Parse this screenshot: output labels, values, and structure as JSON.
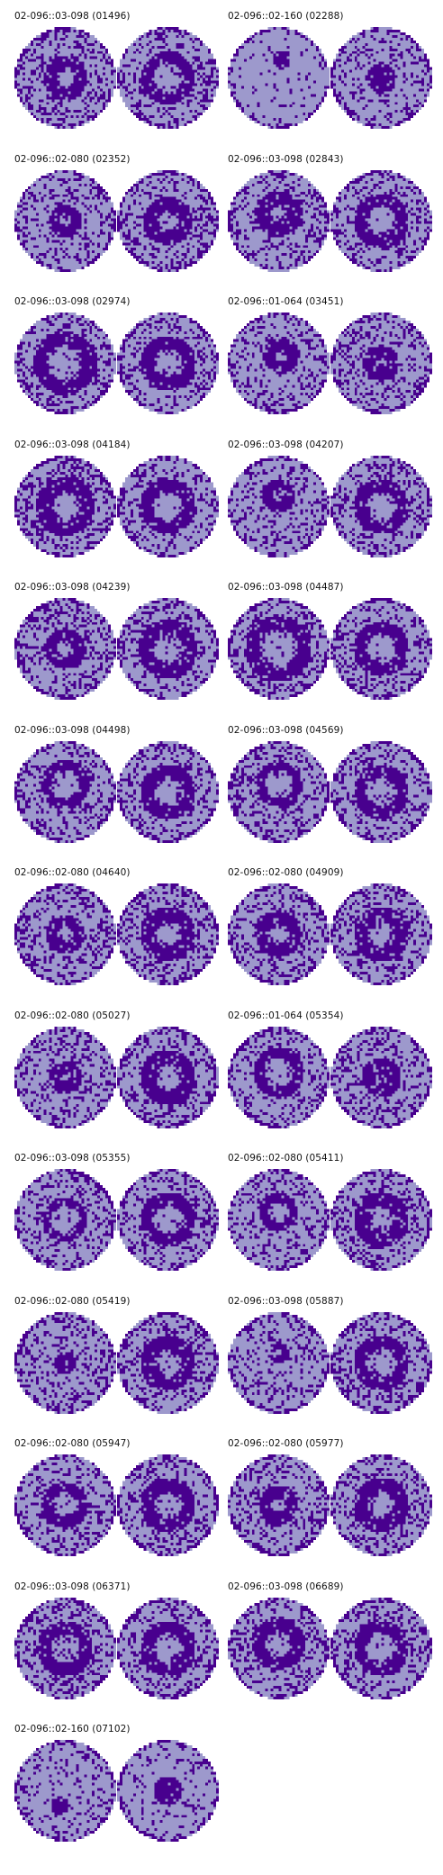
{
  "colors": {
    "fail": "#48008e",
    "pass": "#9d99cc",
    "background": "#ffffff"
  },
  "wafer_pairs": [
    {
      "label": "02-096::03-098 (01496)",
      "left": {
        "pattern": "ring",
        "inner": 0.18,
        "outer": 0.42,
        "noise": 0.33
      },
      "right": {
        "pattern": "ring",
        "inner": 0.3,
        "outer": 0.52,
        "noise": 0.28
      }
    },
    {
      "label": "02-096::02-160 (02288)",
      "left": {
        "pattern": "spot",
        "inner": 0.0,
        "outer": 0.18,
        "noise": 0.1,
        "dx": 0.05,
        "dy": -0.35
      },
      "right": {
        "pattern": "spot",
        "inner": 0.0,
        "outer": 0.3,
        "noise": 0.22
      }
    },
    {
      "label": "02-096::02-080 (02352)",
      "left": {
        "pattern": "ring",
        "inner": 0.12,
        "outer": 0.32,
        "noise": 0.25
      },
      "right": {
        "pattern": "ring",
        "inner": 0.2,
        "outer": 0.48,
        "noise": 0.3
      }
    },
    {
      "label": "02-096::03-098 (02843)",
      "left": {
        "pattern": "ring",
        "inner": 0.15,
        "outer": 0.45,
        "noise": 0.3,
        "dx": 0.0,
        "dy": -0.15
      },
      "right": {
        "pattern": "ring",
        "inner": 0.3,
        "outer": 0.55,
        "noise": 0.28
      }
    },
    {
      "label": "02-096::03-098 (02974)",
      "left": {
        "pattern": "ring",
        "inner": 0.35,
        "outer": 0.62,
        "noise": 0.3
      },
      "right": {
        "pattern": "ring",
        "inner": 0.28,
        "outer": 0.55,
        "noise": 0.28
      }
    },
    {
      "label": "02-096::01-064 (03451)",
      "left": {
        "pattern": "ring",
        "inner": 0.12,
        "outer": 0.35,
        "noise": 0.25,
        "dx": 0.05,
        "dy": -0.15
      },
      "right": {
        "pattern": "ring",
        "inner": 0.1,
        "outer": 0.35,
        "noise": 0.28
      }
    },
    {
      "label": "02-096::03-098 (04184)",
      "left": {
        "pattern": "ring",
        "inner": 0.3,
        "outer": 0.58,
        "noise": 0.32
      },
      "right": {
        "pattern": "ring",
        "inner": 0.3,
        "outer": 0.55,
        "noise": 0.28
      }
    },
    {
      "label": "02-096::03-098 (04207)",
      "left": {
        "pattern": "ring",
        "inner": 0.12,
        "outer": 0.32,
        "noise": 0.25,
        "dx": 0.0,
        "dy": -0.2
      },
      "right": {
        "pattern": "ring",
        "inner": 0.3,
        "outer": 0.55,
        "noise": 0.28
      }
    },
    {
      "label": "02-096::03-098 (04239)",
      "left": {
        "pattern": "ring",
        "inner": 0.18,
        "outer": 0.4,
        "noise": 0.32
      },
      "right": {
        "pattern": "ring",
        "inner": 0.3,
        "outer": 0.58,
        "noise": 0.28
      }
    },
    {
      "label": "02-096::03-098 (04487)",
      "left": {
        "pattern": "ring",
        "inner": 0.38,
        "outer": 0.65,
        "noise": 0.3
      },
      "right": {
        "pattern": "ring",
        "inner": 0.3,
        "outer": 0.55,
        "noise": 0.28
      }
    },
    {
      "label": "02-096::03-098 (04498)",
      "left": {
        "pattern": "ring",
        "inner": 0.28,
        "outer": 0.48,
        "noise": 0.28,
        "dx": 0.0,
        "dy": -0.15
      },
      "right": {
        "pattern": "ring",
        "inner": 0.3,
        "outer": 0.55,
        "noise": 0.28
      }
    },
    {
      "label": "02-096::03-098 (04569)",
      "left": {
        "pattern": "ring",
        "inner": 0.28,
        "outer": 0.45,
        "noise": 0.3,
        "dx": 0.0,
        "dy": -0.15
      },
      "right": {
        "pattern": "ring",
        "inner": 0.3,
        "outer": 0.55,
        "noise": 0.28
      }
    },
    {
      "label": "02-096::02-080 (04640)",
      "left": {
        "pattern": "ring",
        "inner": 0.15,
        "outer": 0.38,
        "noise": 0.28
      },
      "right": {
        "pattern": "ring",
        "inner": 0.25,
        "outer": 0.55,
        "noise": 0.3
      }
    },
    {
      "label": "02-096::02-080 (04909)",
      "left": {
        "pattern": "ring",
        "inner": 0.2,
        "outer": 0.45,
        "noise": 0.28
      },
      "right": {
        "pattern": "ring",
        "inner": 0.25,
        "outer": 0.55,
        "noise": 0.3
      }
    },
    {
      "label": "02-096::02-080 (05027)",
      "left": {
        "pattern": "ring",
        "inner": 0.12,
        "outer": 0.32,
        "noise": 0.28
      },
      "right": {
        "pattern": "ring",
        "inner": 0.25,
        "outer": 0.55,
        "noise": 0.3
      }
    },
    {
      "label": "02-096::01-064 (05354)",
      "left": {
        "pattern": "ring",
        "inner": 0.28,
        "outer": 0.5,
        "noise": 0.22,
        "dx": 0.0,
        "dy": -0.1
      },
      "right": {
        "pattern": "ring",
        "inner": 0.12,
        "outer": 0.38,
        "noise": 0.28
      }
    },
    {
      "label": "02-096::03-098 (05355)",
      "left": {
        "pattern": "ring",
        "inner": 0.3,
        "outer": 0.42,
        "noise": 0.3
      },
      "right": {
        "pattern": "ring",
        "inner": 0.3,
        "outer": 0.55,
        "noise": 0.28
      }
    },
    {
      "label": "02-096::02-080 (05411)",
      "left": {
        "pattern": "ring",
        "inner": 0.2,
        "outer": 0.38,
        "noise": 0.28,
        "dx": 0.0,
        "dy": -0.15
      },
      "right": {
        "pattern": "ring",
        "inner": 0.25,
        "outer": 0.55,
        "noise": 0.3
      }
    },
    {
      "label": "02-096::02-080 (05419)",
      "left": {
        "pattern": "ring",
        "inner": 0.08,
        "outer": 0.22,
        "noise": 0.28
      },
      "right": {
        "pattern": "ring",
        "inner": 0.25,
        "outer": 0.55,
        "noise": 0.3
      }
    },
    {
      "label": "02-096::03-098 (05887)",
      "left": {
        "pattern": "ring",
        "inner": 0.08,
        "outer": 0.2,
        "noise": 0.26,
        "dx": 0.0,
        "dy": -0.2
      },
      "right": {
        "pattern": "ring",
        "inner": 0.3,
        "outer": 0.55,
        "noise": 0.28
      }
    },
    {
      "label": "02-096::02-080 (05947)",
      "left": {
        "pattern": "ring",
        "inner": 0.25,
        "outer": 0.45,
        "noise": 0.28
      },
      "right": {
        "pattern": "ring",
        "inner": 0.25,
        "outer": 0.55,
        "noise": 0.3
      }
    },
    {
      "label": "02-096::02-080 (05977)",
      "left": {
        "pattern": "ring",
        "inner": 0.15,
        "outer": 0.38,
        "noise": 0.28
      },
      "right": {
        "pattern": "ring",
        "inner": 0.25,
        "outer": 0.55,
        "noise": 0.3
      }
    },
    {
      "label": "02-096::03-098 (06371)",
      "left": {
        "pattern": "ring",
        "inner": 0.28,
        "outer": 0.55,
        "noise": 0.32
      },
      "right": {
        "pattern": "ring",
        "inner": 0.3,
        "outer": 0.55,
        "noise": 0.28
      }
    },
    {
      "label": "02-096::03-098 (06689)",
      "left": {
        "pattern": "ring",
        "inner": 0.25,
        "outer": 0.52,
        "noise": 0.3,
        "dx": 0.0,
        "dy": -0.1
      },
      "right": {
        "pattern": "ring",
        "inner": 0.3,
        "outer": 0.55,
        "noise": 0.28
      }
    },
    {
      "label": "02-096::02-160 (07102)",
      "left": {
        "pattern": "spot",
        "inner": 0.0,
        "outer": 0.18,
        "noise": 0.18,
        "dx": -0.1,
        "dy": 0.3
      },
      "right": {
        "pattern": "spot",
        "inner": 0.0,
        "outer": 0.28,
        "noise": 0.15
      }
    }
  ]
}
